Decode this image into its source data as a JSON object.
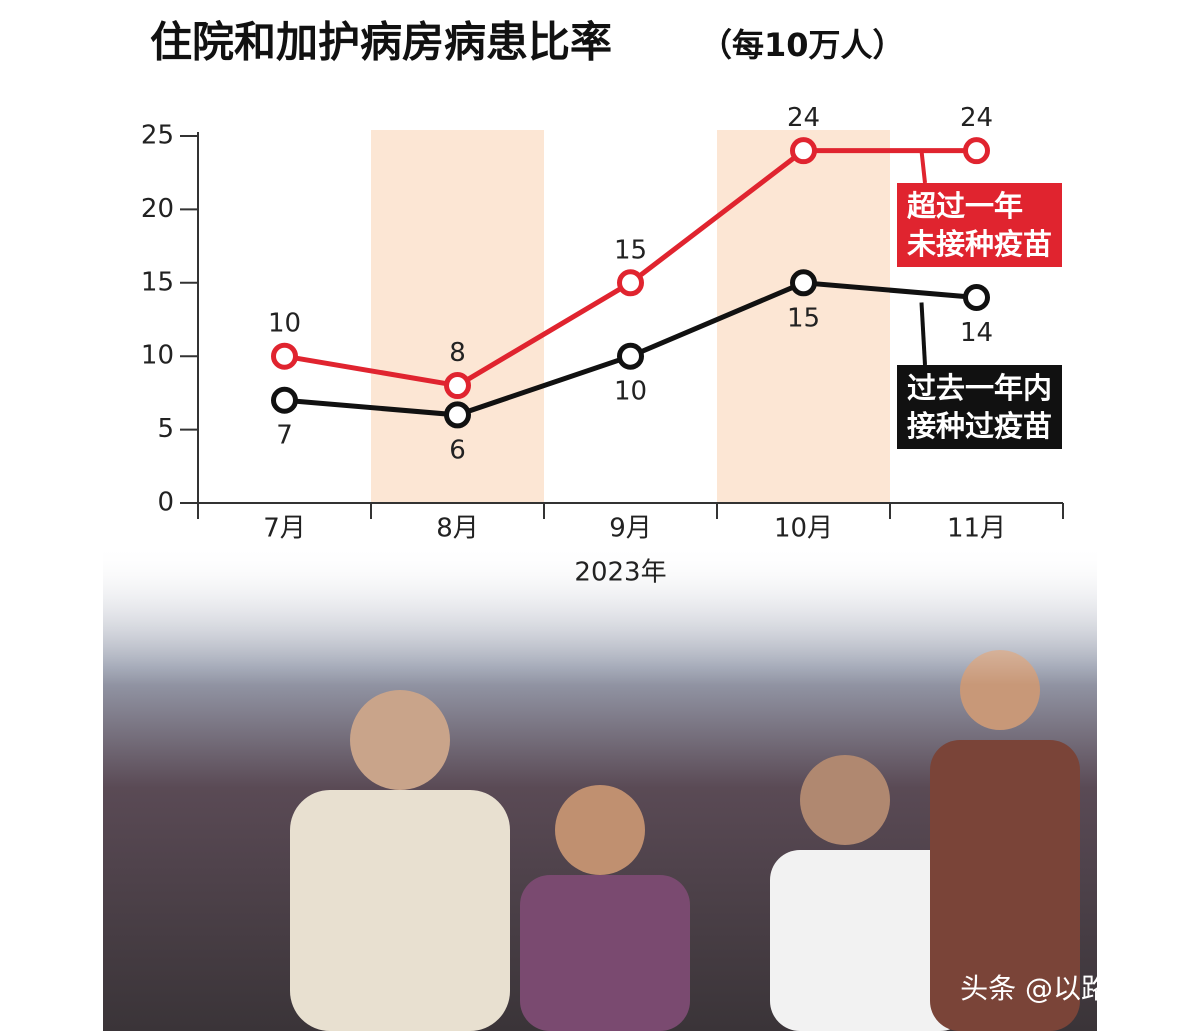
{
  "chart_data": {
    "type": "line",
    "title": "住院和加护病房病患比率",
    "subtitle": "（每10万人）",
    "categories": [
      "7月",
      "8月",
      "9月",
      "10月",
      "11月"
    ],
    "x_label": "2023年",
    "series": [
      {
        "name": "超过一年\n未接种疫苗",
        "color": "#e0242f",
        "values": [
          10,
          8,
          15,
          24,
          24
        ],
        "label_side": "above"
      },
      {
        "name": "过去一年内\n接种过疫苗",
        "color": "#111111",
        "values": [
          7,
          6,
          10,
          15,
          14
        ],
        "label_side": "below"
      }
    ],
    "ylim": [
      0,
      25
    ],
    "yticks": [
      0,
      5,
      10,
      15,
      20,
      25
    ],
    "shaded_categories": [
      1,
      3
    ],
    "shade_color": "#fce6d4"
  },
  "watermark": "头条 @以路之銘"
}
